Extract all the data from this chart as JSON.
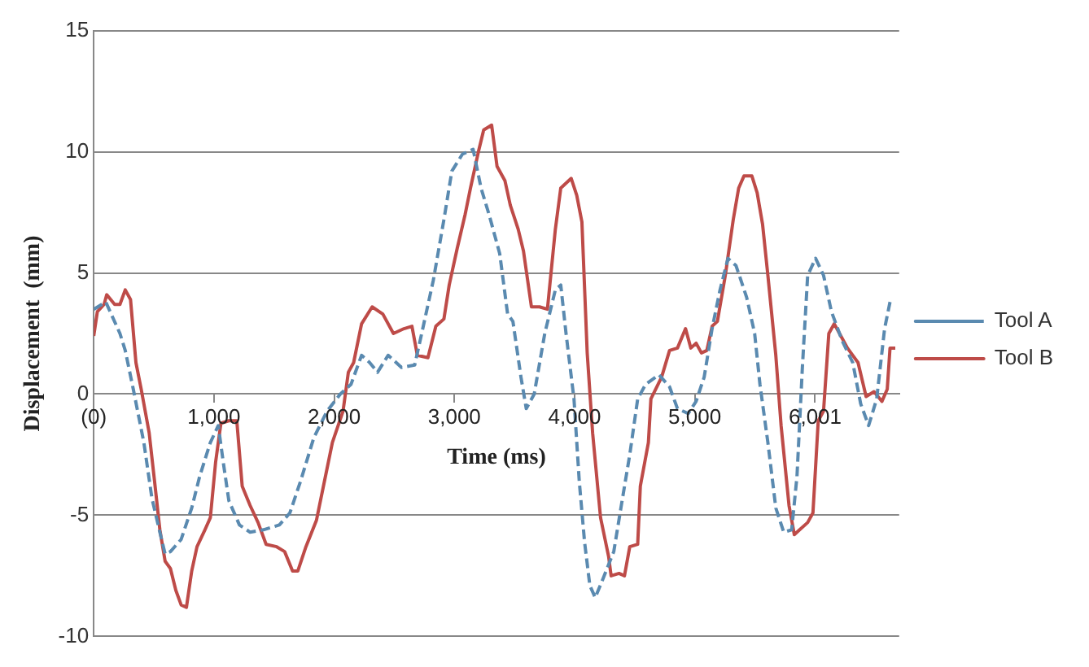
{
  "chart_data": {
    "type": "line",
    "xlabel": "Time (ms)",
    "ylabel": "Displacement  (mm)",
    "xlim": [
      0,
      6700
    ],
    "xticks": [
      {
        "value": 0,
        "label": "(0)"
      },
      {
        "value": 1000,
        "label": "1,000"
      },
      {
        "value": 2000,
        "label": "2,000"
      },
      {
        "value": 3000,
        "label": "3,000"
      },
      {
        "value": 4000,
        "label": "4,000"
      },
      {
        "value": 5000,
        "label": "5,000"
      },
      {
        "value": 6001,
        "label": "6,001"
      }
    ],
    "ylim": [
      -10,
      15
    ],
    "yticks": [
      -10,
      -5,
      0,
      5,
      10,
      15
    ],
    "grid": "y",
    "legend": "right",
    "marker": "none",
    "series": [
      {
        "name": "Tool A",
        "color": "#5a8ab0",
        "line_style": "dashed",
        "x": [
          0,
          100,
          218,
          262,
          329,
          417,
          484,
          550,
          594,
          638,
          727,
          815,
          881,
          970,
          1036,
          1080,
          1124,
          1212,
          1301,
          1411,
          1544,
          1632,
          1720,
          1831,
          1941,
          2051,
          2140,
          2228,
          2295,
          2361,
          2449,
          2560,
          2670,
          2737,
          2825,
          2913,
          2979,
          3067,
          3156,
          3222,
          3289,
          3377,
          3443,
          3487,
          3554,
          3598,
          3664,
          3752,
          3840,
          3885,
          3929,
          3995,
          4039,
          4083,
          4127,
          4172,
          4238,
          4326,
          4392,
          4459,
          4525,
          4591,
          4701,
          4790,
          4856,
          4945,
          5011,
          5078,
          5144,
          5210,
          5276,
          5343,
          5431,
          5498,
          5542,
          5608,
          5674,
          5740,
          5806,
          5850,
          5895,
          5939,
          6005,
          6071,
          6137,
          6226,
          6314,
          6380,
          6446,
          6513,
          6579,
          6624
        ],
        "values": [
          3.5,
          3.8,
          2.5,
          1.8,
          0.2,
          -2.0,
          -4.3,
          -5.7,
          -6.6,
          -6.5,
          -6.0,
          -4.7,
          -3.4,
          -2.0,
          -1.3,
          -2.9,
          -4.4,
          -5.4,
          -5.7,
          -5.6,
          -5.4,
          -4.9,
          -3.6,
          -1.8,
          -0.7,
          0.0,
          0.4,
          1.6,
          1.3,
          0.9,
          1.6,
          1.1,
          1.2,
          2.7,
          4.7,
          7.2,
          9.2,
          9.9,
          10.1,
          8.5,
          7.4,
          5.8,
          3.3,
          3.0,
          0.7,
          -0.6,
          0.0,
          2.5,
          4.3,
          4.5,
          2.5,
          -0.2,
          -3.6,
          -6.1,
          -7.9,
          -8.4,
          -7.6,
          -6.5,
          -4.5,
          -2.5,
          -0.2,
          0.4,
          0.8,
          0.3,
          -0.6,
          -0.8,
          -0.3,
          0.7,
          2.7,
          4.3,
          5.6,
          5.3,
          4.0,
          2.5,
          0.4,
          -2.0,
          -4.7,
          -5.7,
          -5.6,
          -3.4,
          1.1,
          4.9,
          5.6,
          4.9,
          3.4,
          2.2,
          1.3,
          -0.4,
          -1.3,
          -0.2,
          2.7,
          3.8
        ]
      },
      {
        "name": "Tool B",
        "color": "#be4b48",
        "line_style": "solid",
        "x": [
          0,
          30,
          86,
          108,
          174,
          218,
          262,
          306,
          351,
          395,
          461,
          506,
          550,
          594,
          638,
          683,
          727,
          771,
          815,
          859,
          925,
          970,
          1014,
          1058,
          1124,
          1190,
          1235,
          1301,
          1367,
          1434,
          1522,
          1588,
          1654,
          1698,
          1765,
          1853,
          1919,
          1985,
          2074,
          2118,
          2162,
          2228,
          2316,
          2405,
          2493,
          2581,
          2647,
          2692,
          2780,
          2846,
          2913,
          2957,
          3023,
          3089,
          3134,
          3200,
          3244,
          3310,
          3355,
          3421,
          3465,
          3531,
          3575,
          3641,
          3708,
          3774,
          3840,
          3885,
          3972,
          4018,
          4061,
          4105,
          4150,
          4216,
          4283,
          4304,
          4370,
          4415,
          4459,
          4525,
          4547,
          4614,
          4635,
          4724,
          4790,
          4856,
          4923,
          4967,
          5011,
          5055,
          5100,
          5144,
          5188,
          5254,
          5320,
          5365,
          5409,
          5475,
          5519,
          5564,
          5608,
          5674,
          5718,
          5784,
          5828,
          5872,
          5939,
          5983,
          6027,
          6071,
          6115,
          6160,
          6204,
          6270,
          6314,
          6358,
          6425,
          6491,
          6557,
          6601,
          6624,
          6668
        ],
        "values": [
          2.4,
          3.4,
          3.7,
          4.1,
          3.7,
          3.7,
          4.3,
          3.9,
          1.3,
          0.2,
          -1.6,
          -3.6,
          -5.6,
          -6.9,
          -7.2,
          -8.1,
          -8.7,
          -8.8,
          -7.3,
          -6.3,
          -5.6,
          -5.1,
          -2.8,
          -1.2,
          -1.1,
          -1.1,
          -3.8,
          -4.6,
          -5.3,
          -6.2,
          -6.3,
          -6.5,
          -7.3,
          -7.3,
          -6.3,
          -5.2,
          -3.6,
          -2.0,
          -0.7,
          0.9,
          1.3,
          2.9,
          3.6,
          3.3,
          2.5,
          2.7,
          2.8,
          1.6,
          1.5,
          2.8,
          3.1,
          4.5,
          6.0,
          7.4,
          8.5,
          10.0,
          10.9,
          11.1,
          9.4,
          8.8,
          7.8,
          6.8,
          5.9,
          3.6,
          3.6,
          3.5,
          6.8,
          8.5,
          8.9,
          8.2,
          7.1,
          1.7,
          -1.6,
          -5.1,
          -6.7,
          -7.5,
          -7.4,
          -7.5,
          -6.3,
          -6.2,
          -3.8,
          -2.0,
          -0.2,
          0.7,
          1.8,
          1.9,
          2.7,
          1.9,
          2.1,
          1.7,
          1.8,
          2.8,
          3.0,
          4.9,
          7.2,
          8.5,
          9.0,
          9.0,
          8.3,
          7.0,
          4.9,
          1.6,
          -1.3,
          -4.6,
          -5.8,
          -5.6,
          -5.3,
          -4.9,
          -1.1,
          -0.7,
          2.5,
          2.9,
          2.5,
          1.9,
          1.6,
          1.3,
          -0.1,
          0.1,
          -0.3,
          0.2,
          1.9,
          1.9
        ]
      }
    ]
  }
}
